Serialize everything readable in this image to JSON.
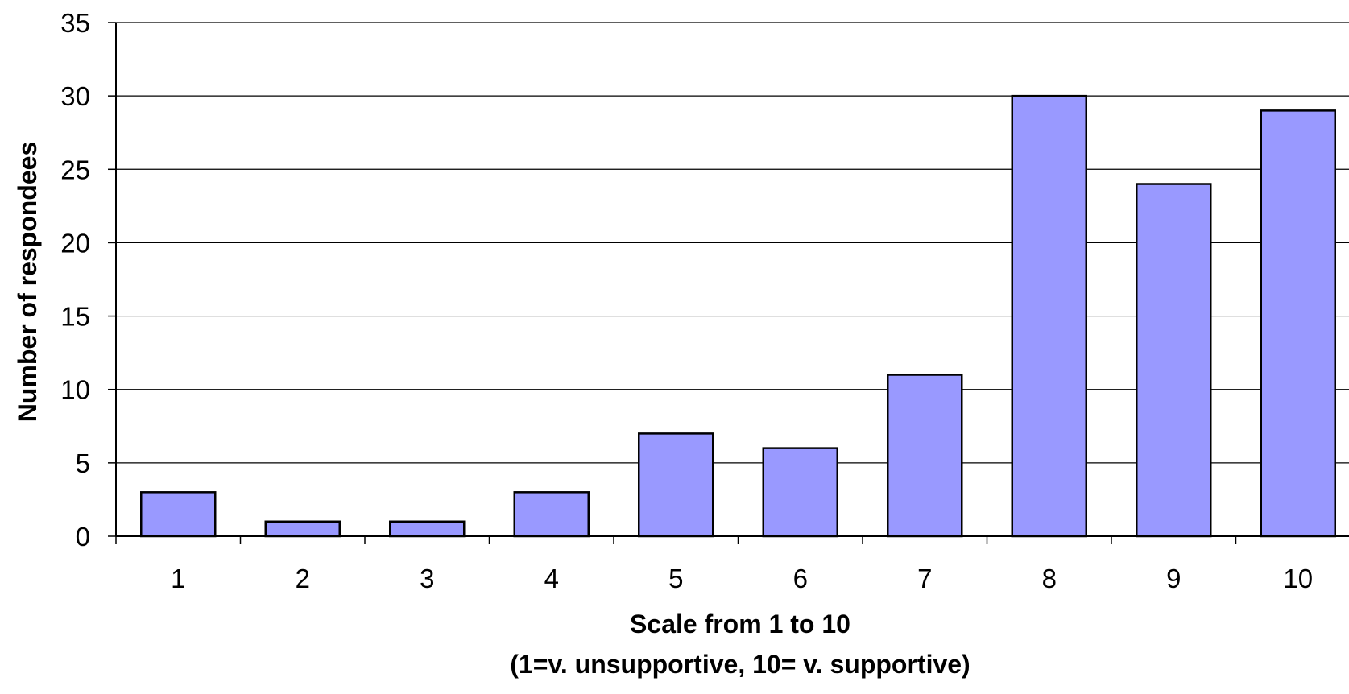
{
  "chart_data": {
    "type": "bar",
    "title": "",
    "xlabel": "Scale from 1 to 10",
    "xlabel_line2": "(1=v. unsupportive, 10= v. supportive)",
    "ylabel": "Number of respondees",
    "categories": [
      "1",
      "2",
      "3",
      "4",
      "5",
      "6",
      "7",
      "8",
      "9",
      "10"
    ],
    "values": [
      3,
      1,
      1,
      3,
      7,
      6,
      11,
      30,
      24,
      29
    ],
    "ylim": [
      0,
      35
    ],
    "yticks": [
      0,
      5,
      10,
      15,
      20,
      25,
      30,
      35
    ],
    "grid": true,
    "legend": "none",
    "colors": {
      "bar_fill": "#9999ff",
      "bar_stroke": "#000000",
      "grid": "#000000",
      "axis": "#000000"
    }
  }
}
